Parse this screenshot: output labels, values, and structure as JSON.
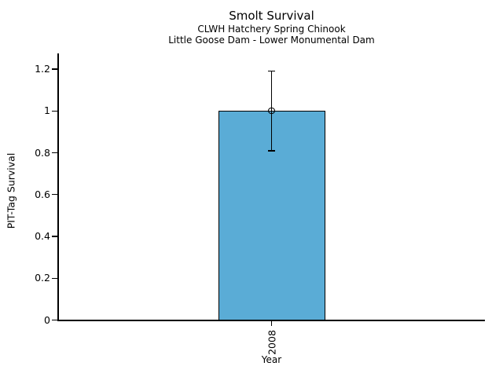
{
  "chart_data": {
    "type": "bar",
    "title": "Smolt Survival",
    "subtitles": [
      "CLWH Hatchery Spring Chinook",
      "Little Goose Dam - Lower Monumental Dam"
    ],
    "xlabel": "Year",
    "ylabel": "PIT-Tag Survival",
    "categories": [
      "2008"
    ],
    "values": [
      1.0
    ],
    "error_low": [
      0.81
    ],
    "error_high": [
      1.19
    ],
    "yticks": [
      0,
      0.2,
      0.4,
      0.6,
      0.8,
      1,
      1.2
    ],
    "ytick_labels": [
      "0",
      "0.2",
      "0.4",
      "0.6",
      "0.8",
      "1",
      "1.2"
    ],
    "ylim": [
      0,
      1.27
    ],
    "grid": false,
    "legend_position": "none",
    "x_tick_label_rotation": 90,
    "bar_color": "#5AACD6",
    "bar_edge_color": "#000000",
    "error_bar_color": "#000000",
    "marker": "open-circle"
  }
}
